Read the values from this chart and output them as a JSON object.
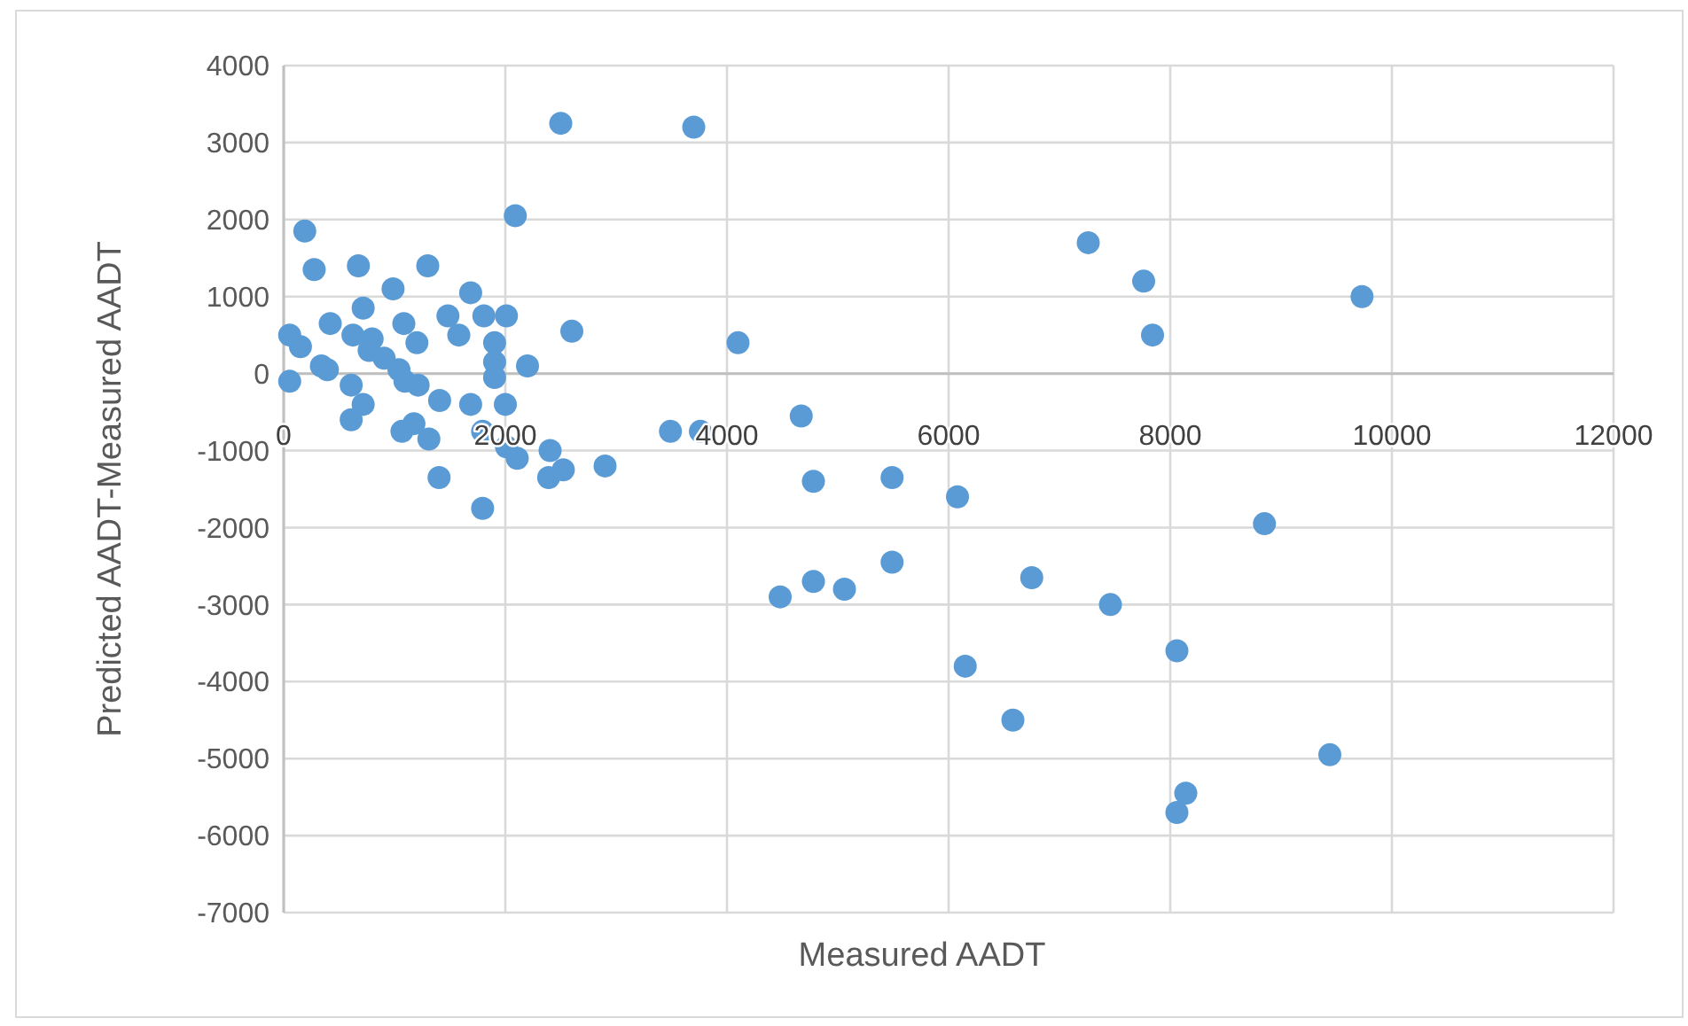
{
  "chart_data": {
    "type": "scatter",
    "xlabel": "Measured AADT",
    "ylabel": "Predicted AADT-Measured AADT",
    "xlim": [
      0,
      12000
    ],
    "ylim": [
      -7000,
      4000
    ],
    "xticks": [
      0,
      2000,
      4000,
      6000,
      8000,
      10000,
      12000
    ],
    "yticks": [
      -7000,
      -6000,
      -5000,
      -4000,
      -3000,
      -2000,
      -1000,
      0,
      1000,
      2000,
      3000,
      4000
    ],
    "grid": true,
    "marker": "circle",
    "series": [
      {
        "color": "#5b9bd5",
        "x": [
          2500,
          3700,
          2090,
          190,
          7260,
          7760,
          9730,
          7840,
          4100,
          2600,
          4670,
          3490,
          3760,
          2900,
          4780,
          5490,
          6080,
          8850,
          5490,
          6750,
          4780,
          5060,
          4480,
          7460,
          8060,
          6150,
          6580,
          9440,
          8140,
          8060,
          275,
          674,
          1300,
          987,
          717,
          1687,
          1482,
          1806,
          2010,
          420,
          1084,
          625,
          798,
          1580,
          54,
          151,
          1903,
          1202,
          340,
          394,
          771,
          906,
          1040,
          1903,
          1903,
          2200,
          1094,
          1213,
          1407,
          609,
          54,
          717,
          609,
          1687,
          2000,
          1175,
          1067,
          1310,
          1795,
          2010,
          2107,
          2404,
          2523,
          2391,
          1402,
          1795
        ],
        "values": [
          3250,
          3200,
          2050,
          1850,
          1700,
          1200,
          1000,
          500,
          400,
          550,
          -550,
          -750,
          -750,
          -1200,
          -1400,
          -1350,
          -1600,
          -1950,
          -2450,
          -2650,
          -2700,
          -2800,
          -2900,
          -3000,
          -3600,
          -3800,
          -4500,
          -4950,
          -5450,
          -5700,
          1350,
          1400,
          1400,
          1100,
          850,
          1050,
          750,
          750,
          750,
          650,
          650,
          500,
          450,
          500,
          500,
          350,
          400,
          400,
          100,
          50,
          300,
          200,
          50,
          150,
          -50,
          100,
          -100,
          -150,
          -350,
          -150,
          -100,
          -400,
          -600,
          -400,
          -400,
          -650,
          -750,
          -850,
          -750,
          -950,
          -1100,
          -1000,
          -1250,
          -1350,
          -1350,
          -1750
        ]
      }
    ]
  }
}
